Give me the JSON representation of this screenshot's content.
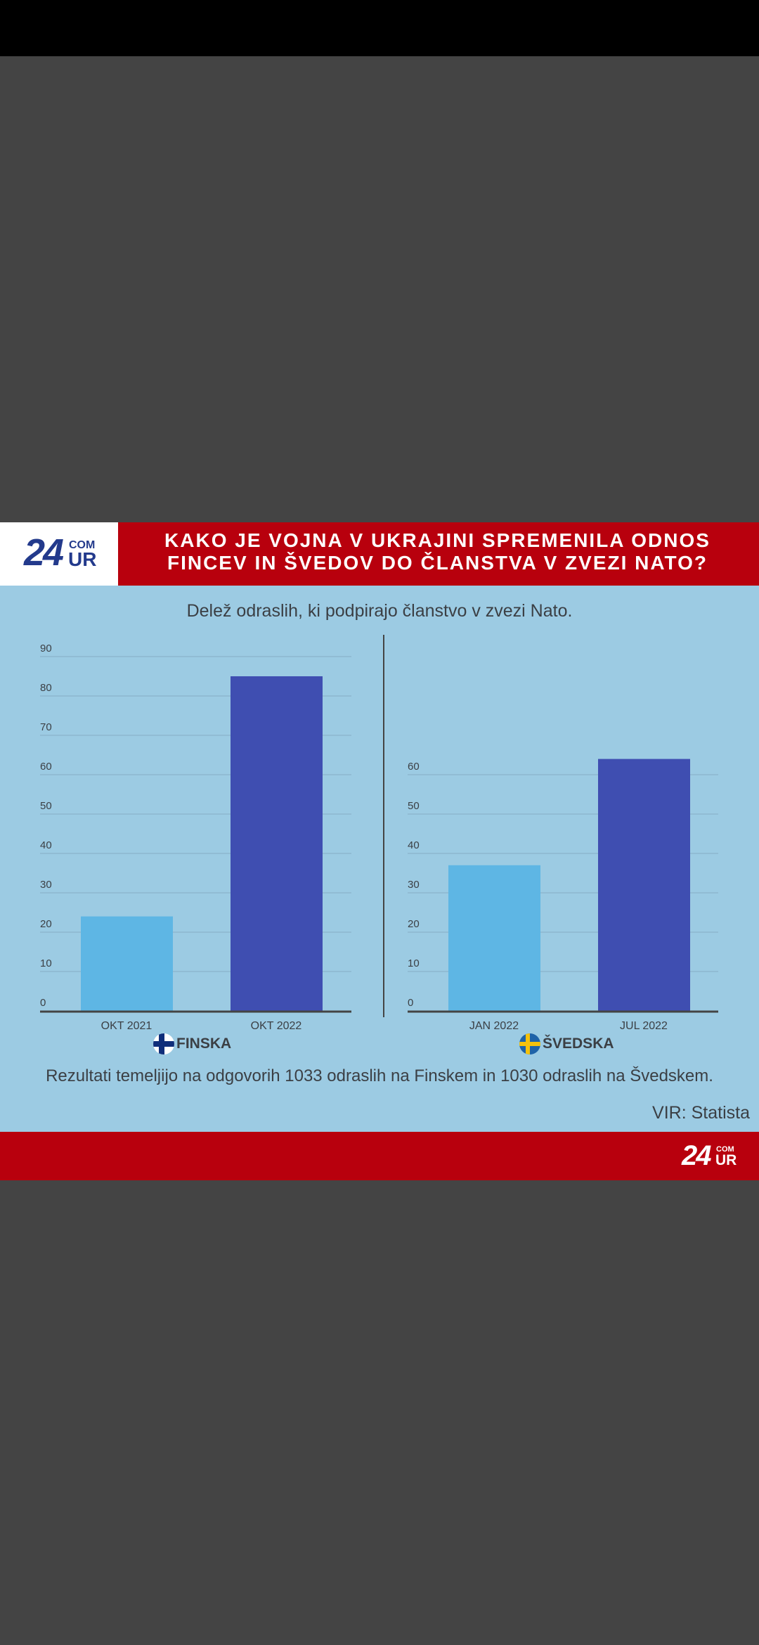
{
  "header": {
    "logo_number": "24",
    "logo_com": "COM",
    "logo_ur": "UR",
    "title_line1": "KAKO JE VOJNA V UKRAJINI SPREMENILA ODNOS",
    "title_line2": "FINCEV IN ŠVEDOV DO ČLANSTVA V ZVEZI NATO?"
  },
  "colors": {
    "header_red": "#b8000d",
    "panel_blue": "#9ccbe3",
    "bar_light": "#5eb6e4",
    "bar_dark": "#3f4eb1",
    "logo_blue": "#233a8c"
  },
  "chart_data": [
    {
      "type": "bar",
      "title": "Delež odraslih, ki podpirajo članstvo v zvezi Nato.",
      "categories": [
        "OKT 2021",
        "OKT 2022"
      ],
      "values": [
        24,
        85
      ],
      "yticks": [
        0,
        10,
        20,
        30,
        40,
        50,
        60,
        70,
        80,
        90
      ],
      "ylim": [
        0,
        90
      ],
      "grid": true,
      "legend": "FINSKA"
    },
    {
      "type": "bar",
      "title": "Delež odraslih, ki podpirajo članstvo v zvezi Nato.",
      "categories": [
        "JAN 2022",
        "JUL 2022"
      ],
      "values": [
        37,
        64
      ],
      "yticks": [
        0,
        10,
        20,
        30,
        40,
        50,
        60
      ],
      "ylim": [
        0,
        60
      ],
      "grid": true,
      "legend": "ŠVEDSKA"
    }
  ],
  "footnote": "Rezultati temeljijo na odgovorih 1033 odraslih na Finskem in 1030 odraslih na Švedskem.",
  "source": "VIR: Statista",
  "footer": {
    "logo_number": "24",
    "logo_com": "COM",
    "logo_ur": "UR"
  },
  "icons": {
    "flag_finland": "finland-flag-icon",
    "flag_sweden": "sweden-flag-icon"
  }
}
